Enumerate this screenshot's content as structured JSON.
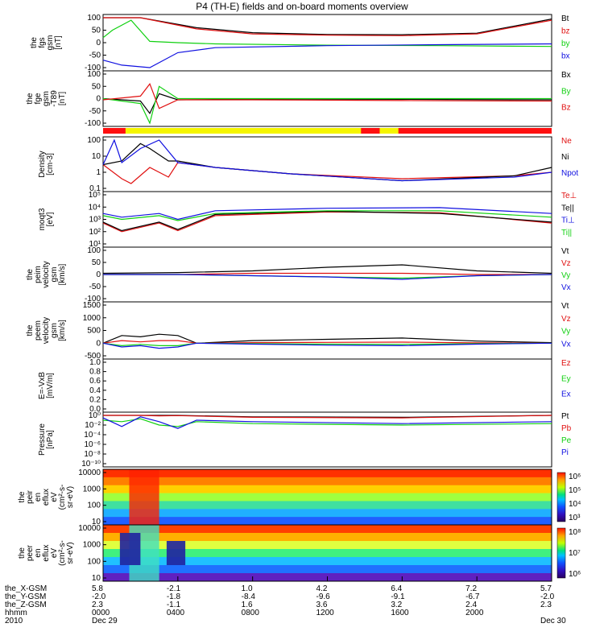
{
  "title": "P4 (TH-E) fields and on-board moments overview",
  "colors": {
    "black": "#000000",
    "red": "#e01010",
    "green": "#10d010",
    "blue": "#1010e0",
    "yellow": "#f5f500",
    "flag_red": "#ff1010"
  },
  "panels": [
    {
      "id": "fgs",
      "ylabel": [
        "the",
        "fgs",
        "gsm",
        "[nT]"
      ],
      "ticks": [
        "100",
        "50",
        "0",
        "-50",
        "-100"
      ],
      "legend": [
        {
          "text": "Bt",
          "color": "#000000"
        },
        {
          "text": "bz",
          "color": "#e01010"
        },
        {
          "text": "by",
          "color": "#10d010"
        },
        {
          "text": "bx",
          "color": "#1010e0"
        }
      ]
    },
    {
      "id": "fgs_dsl",
      "ylabel": [
        "the",
        "fge",
        "gsm",
        "-T89",
        "[nT]"
      ],
      "ticks": [
        "100",
        "50",
        "0",
        "-50",
        "-100"
      ],
      "legend": [
        {
          "text": "Bx",
          "color": "#000000"
        },
        {
          "text": "By",
          "color": "#10d010"
        },
        {
          "text": "Bz",
          "color": "#e01010"
        }
      ]
    },
    {
      "id": "density",
      "ylabel": [
        "Density",
        "[cm-3]"
      ],
      "ticks": [
        "100",
        "10",
        "1",
        "0.1"
      ],
      "legend": [
        {
          "text": "Ne",
          "color": "#e01010"
        },
        {
          "text": "Ni",
          "color": "#000000"
        },
        {
          "text": "Npot",
          "color": "#1010e0"
        }
      ]
    },
    {
      "id": "temp",
      "ylabel": [
        "moqt3",
        "[eV]"
      ],
      "ticks": [
        "10⁵",
        "10⁴",
        "10³",
        "10²",
        "10¹"
      ],
      "legend": [
        {
          "text": "Te⊥",
          "color": "#e01010"
        },
        {
          "text": "Te||",
          "color": "#000000"
        },
        {
          "text": "Ti⊥",
          "color": "#1010e0"
        },
        {
          "text": "Ti||",
          "color": "#10d010"
        }
      ]
    },
    {
      "id": "peim_vel",
      "ylabel": [
        "the",
        "peim",
        "velocity",
        "gsm",
        "[km/s]"
      ],
      "ticks": [
        "100",
        "50",
        "0",
        "-50",
        "-100"
      ],
      "legend": [
        {
          "text": "Vt",
          "color": "#000000"
        },
        {
          "text": "Vz",
          "color": "#e01010"
        },
        {
          "text": "Vy",
          "color": "#10d010"
        },
        {
          "text": "Vx",
          "color": "#1010e0"
        }
      ]
    },
    {
      "id": "peem_vel",
      "ylabel": [
        "the",
        "peem",
        "velocity",
        "gsm",
        "[km/s]"
      ],
      "ticks": [
        "1500",
        "1000",
        "500",
        "0",
        "-500"
      ],
      "legend": [
        {
          "text": "Vt",
          "color": "#000000"
        },
        {
          "text": "Vz",
          "color": "#e01010"
        },
        {
          "text": "Vy",
          "color": "#10d010"
        },
        {
          "text": "Vx",
          "color": "#1010e0"
        }
      ]
    },
    {
      "id": "efield",
      "ylabel": [
        "E=-VxB",
        "[mV/m]"
      ],
      "ticks": [
        "1.0",
        "0.8",
        "0.6",
        "0.4",
        "0.2",
        "0.0"
      ],
      "legend": [
        {
          "text": "Ez",
          "color": "#e01010"
        },
        {
          "text": "Ey",
          "color": "#10d010"
        },
        {
          "text": "Ex",
          "color": "#1010e0"
        }
      ]
    },
    {
      "id": "pressure",
      "ylabel": [
        "Pressure",
        "[nPa]"
      ],
      "ticks": [
        "10⁰",
        "10⁻²",
        "10⁻⁴",
        "10⁻⁶",
        "10⁻⁸",
        "10⁻¹⁰"
      ],
      "legend": [
        {
          "text": "Pt",
          "color": "#000000"
        },
        {
          "text": "Pb",
          "color": "#e01010"
        },
        {
          "text": "Pe",
          "color": "#10d010"
        },
        {
          "text": "Pi",
          "color": "#1010e0"
        }
      ]
    },
    {
      "id": "peir_spec",
      "ylabel": [
        "the",
        "peir",
        "en",
        "eflux",
        "eV",
        "(cm²-s-",
        "sr-eV)"
      ],
      "ticks": [
        "10000",
        "1000",
        "100",
        "10"
      ],
      "cbar_ticks": [
        "10⁶",
        "10⁵",
        "10⁴",
        "10³"
      ]
    },
    {
      "id": "peer_spec",
      "ylabel": [
        "the",
        "peer",
        "en",
        "eflux",
        "eV",
        "(cm²-s-",
        "sr-eV)"
      ],
      "ticks": [
        "10000",
        "1000",
        "100",
        "10"
      ],
      "cbar_ticks": [
        "10⁸",
        "10⁷",
        "10⁶"
      ]
    }
  ],
  "ephemeris": {
    "labels": [
      "the_X-GSM",
      "the_Y-GSM",
      "the_Z-GSM",
      "hhmm",
      "2010"
    ],
    "columns": [
      [
        "5.8",
        "-2.0",
        "2.3",
        "0000",
        "Dec 29"
      ],
      [
        "-2.1",
        "-1.8",
        "-1.1",
        "0400",
        ""
      ],
      [
        "1.0",
        "-8.4",
        "1.6",
        "0800",
        ""
      ],
      [
        "4.2",
        "-9.6",
        "3.6",
        "1200",
        ""
      ],
      [
        "6.4",
        "-9.1",
        "3.2",
        "1600",
        ""
      ],
      [
        "7.2",
        "-6.7",
        "2.4",
        "2000",
        ""
      ],
      [
        "5.7",
        "-2.0",
        "2.3",
        "",
        "Dec 30"
      ]
    ]
  },
  "chart_data": {
    "type": "line",
    "title": "P4 (TH-E) fields and on-board moments overview",
    "x_label": "hhmm",
    "x_ticks": [
      "0000",
      "0400",
      "0800",
      "1200",
      "1600",
      "2000"
    ],
    "x_range_hours": [
      0,
      24
    ],
    "panels": [
      {
        "name": "the fgs gsm [nT]",
        "ylim": [
          -100,
          100
        ],
        "series": [
          {
            "name": "Bt",
            "x": [
              0,
              2,
              5,
              8,
              12,
              16,
              20,
              24
            ],
            "y": [
              100,
              100,
              60,
              40,
              33,
              32,
              38,
              95
            ]
          },
          {
            "name": "bz",
            "x": [
              0,
              2,
              5,
              8,
              12,
              16,
              20,
              24
            ],
            "y": [
              100,
              100,
              55,
              35,
              30,
              28,
              35,
              90
            ]
          },
          {
            "name": "by",
            "x": [
              0,
              0.5,
              1.5,
              2.5,
              4,
              6,
              12,
              18,
              24
            ],
            "y": [
              20,
              50,
              90,
              5,
              0,
              -5,
              -10,
              -12,
              -15
            ]
          },
          {
            "name": "bx",
            "x": [
              0,
              1,
              2.5,
              4,
              6,
              12,
              18,
              24
            ],
            "y": [
              -70,
              -90,
              -100,
              -40,
              -20,
              -12,
              -8,
              -5
            ]
          }
        ]
      },
      {
        "name": "the fge gsm -T89 [nT]",
        "ylim": [
          -100,
          100
        ],
        "series": [
          {
            "name": "Bx",
            "x": [
              0,
              2,
              2.5,
              3,
              4,
              8,
              16,
              24
            ],
            "y": [
              0,
              -10,
              -60,
              20,
              -5,
              -2,
              -3,
              -5
            ]
          },
          {
            "name": "By",
            "x": [
              0,
              2,
              2.5,
              3,
              4,
              8,
              16,
              24
            ],
            "y": [
              0,
              -20,
              -100,
              50,
              0,
              0,
              0,
              0
            ]
          },
          {
            "name": "Bz",
            "x": [
              0,
              2,
              2.5,
              3,
              4,
              8,
              16,
              24
            ],
            "y": [
              -5,
              10,
              60,
              -40,
              -5,
              -5,
              -8,
              -10
            ]
          }
        ]
      },
      {
        "name": "Density [cm-3]",
        "ylim": [
          0.1,
          100
        ],
        "scale": "log",
        "series": [
          {
            "name": "Ne",
            "x": [
              0,
              1,
              1.5,
              2.5,
              3.5,
              4,
              6,
              10,
              16,
              22,
              24
            ],
            "y": [
              3,
              0.4,
              0.2,
              2,
              0.5,
              4,
              2,
              0.8,
              0.4,
              0.6,
              1
            ]
          },
          {
            "name": "Ni",
            "x": [
              0,
              1,
              2,
              2.5,
              3.5,
              4,
              6,
              10,
              16,
              22,
              24
            ],
            "y": [
              3,
              5,
              60,
              30,
              5,
              5,
              2,
              0.8,
              0.3,
              0.6,
              2
            ]
          },
          {
            "name": "Npot",
            "x": [
              0,
              0.6,
              1,
              2,
              3,
              4,
              6,
              10,
              16,
              22,
              24
            ],
            "y": [
              3,
              100,
              4,
              30,
              100,
              4,
              2,
              0.8,
              0.3,
              0.5,
              1
            ]
          }
        ]
      },
      {
        "name": "moqt3 [eV]",
        "ylim": [
          10,
          100000
        ],
        "scale": "log",
        "series": [
          {
            "name": "Te⊥",
            "x": [
              0,
              1,
              3,
              4,
              6,
              12,
              18,
              24
            ],
            "y": [
              500,
              100,
              500,
              120,
              2000,
              4000,
              3500,
              500
            ]
          },
          {
            "name": "Te||",
            "x": [
              0,
              1,
              3,
              4,
              6,
              12,
              18,
              24
            ],
            "y": [
              600,
              120,
              600,
              150,
              2500,
              4500,
              3000,
              600
            ]
          },
          {
            "name": "Ti⊥",
            "x": [
              0,
              1,
              3,
              4,
              6,
              12,
              18,
              24
            ],
            "y": [
              3000,
              1500,
              3000,
              1000,
              5000,
              8000,
              9000,
              3000
            ]
          },
          {
            "name": "Ti||",
            "x": [
              0,
              1,
              3,
              4,
              6,
              12,
              18,
              24
            ],
            "y": [
              2000,
              1000,
              2000,
              800,
              3000,
              5000,
              5000,
              1500
            ]
          }
        ]
      },
      {
        "name": "the peim velocity gsm [km/s]",
        "ylim": [
          -100,
          100
        ],
        "series": [
          {
            "name": "Vt",
            "x": [
              0,
              4,
              8,
              12,
              16,
              20,
              24
            ],
            "y": [
              5,
              8,
              15,
              30,
              40,
              15,
              5
            ]
          },
          {
            "name": "Vz",
            "x": [
              0,
              4,
              8,
              12,
              16,
              20,
              24
            ],
            "y": [
              0,
              0,
              5,
              5,
              5,
              0,
              0
            ]
          },
          {
            "name": "Vy",
            "x": [
              0,
              4,
              8,
              12,
              16,
              20,
              24
            ],
            "y": [
              0,
              0,
              -5,
              -10,
              -15,
              -5,
              0
            ]
          },
          {
            "name": "Vx",
            "x": [
              0,
              4,
              8,
              12,
              16,
              20,
              24
            ],
            "y": [
              0,
              0,
              -5,
              -10,
              -20,
              -5,
              0
            ]
          }
        ]
      },
      {
        "name": "the peem velocity gsm [km/s]",
        "ylim": [
          -500,
          1500
        ],
        "series": [
          {
            "name": "Vt",
            "x": [
              0,
              1,
              2,
              3,
              4,
              5,
              8,
              12,
              16,
              20,
              24
            ],
            "y": [
              0,
              300,
              250,
              350,
              300,
              0,
              100,
              150,
              200,
              80,
              20
            ]
          },
          {
            "name": "Vz",
            "x": [
              0,
              1,
              2,
              3,
              4,
              5,
              8,
              12,
              16,
              20,
              24
            ],
            "y": [
              0,
              100,
              50,
              100,
              100,
              0,
              20,
              30,
              40,
              10,
              0
            ]
          },
          {
            "name": "Vy",
            "x": [
              0,
              1,
              2,
              3,
              4,
              5,
              8,
              12,
              16,
              20,
              24
            ],
            "y": [
              0,
              -100,
              -50,
              -100,
              -100,
              0,
              -20,
              -40,
              -50,
              -20,
              0
            ]
          },
          {
            "name": "Vx",
            "x": [
              0,
              1,
              2,
              3,
              4,
              5,
              8,
              12,
              16,
              20,
              24
            ],
            "y": [
              0,
              -150,
              -100,
              -200,
              -150,
              0,
              -40,
              -80,
              -100,
              -40,
              0
            ]
          }
        ]
      },
      {
        "name": "E=-VxB [mV/m]",
        "ylim": [
          0,
          1
        ],
        "series": []
      },
      {
        "name": "Pressure [nPa]",
        "ylim": [
          1e-10,
          1
        ],
        "scale": "log",
        "series": [
          {
            "name": "Pt",
            "x": [
              0,
              2,
              3,
              4,
              8,
              16,
              24
            ],
            "y": [
              3,
              2,
              1,
              1,
              0.5,
              0.4,
              1.5
            ]
          },
          {
            "name": "Pb",
            "x": [
              0,
              2,
              3,
              4,
              8,
              16,
              24
            ],
            "y": [
              2,
              1.5,
              0.8,
              0.9,
              0.4,
              0.3,
              1.2
            ]
          },
          {
            "name": "Pe",
            "x": [
              0,
              1,
              2,
              3,
              4,
              5,
              8,
              16,
              24
            ],
            "y": [
              0.1,
              0.05,
              0.2,
              0.01,
              0.005,
              0.05,
              0.02,
              0.01,
              0.02
            ]
          },
          {
            "name": "Pi",
            "x": [
              0,
              1,
              2,
              3,
              4,
              5,
              8,
              16,
              24
            ],
            "y": [
              0.3,
              0.005,
              0.5,
              0.05,
              0.002,
              0.1,
              0.05,
              0.02,
              0.05
            ]
          }
        ]
      },
      {
        "name": "the peir en eflux eV (cm²-s-sr-eV)",
        "type": "heatmap",
        "ylim": [
          10,
          20000
        ],
        "scale": "log",
        "colorbar": [
          1000,
          1000000
        ]
      },
      {
        "name": "the peer en eflux eV (cm²-s-sr-eV)",
        "type": "heatmap",
        "ylim": [
          10,
          20000
        ],
        "scale": "log",
        "colorbar": [
          1000000,
          100000000
        ]
      }
    ]
  }
}
